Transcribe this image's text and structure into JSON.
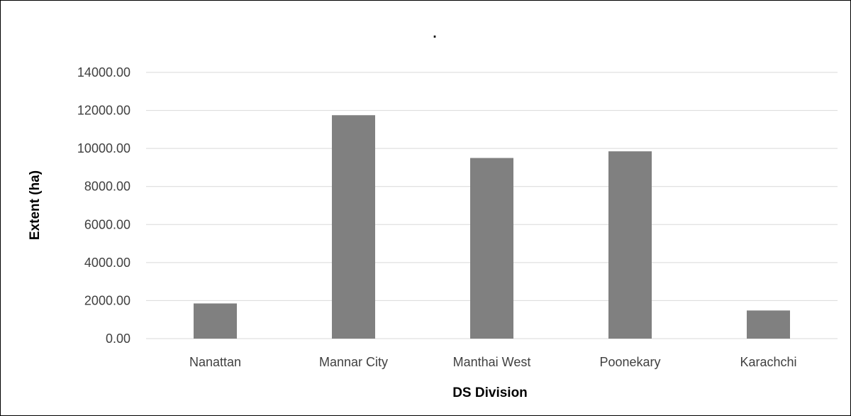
{
  "chart_data": {
    "type": "bar",
    "title": ".",
    "xlabel": "DS Division",
    "ylabel": "Extent (ha)",
    "categories": [
      "Nanattan",
      "Mannar City",
      "Manthai West",
      "Poonekary",
      "Karachchi"
    ],
    "values": [
      1850,
      11750,
      9500,
      9850,
      1480
    ],
    "ylim": [
      0,
      14000
    ],
    "yticks": [
      "0.00",
      "2000.00",
      "4000.00",
      "6000.00",
      "8000.00",
      "10000.00",
      "12000.00",
      "14000.00"
    ],
    "grid": true,
    "legend": "none",
    "colors": {
      "bar": "#808080",
      "grid": "#d9d9d9",
      "text": "#404040"
    }
  }
}
